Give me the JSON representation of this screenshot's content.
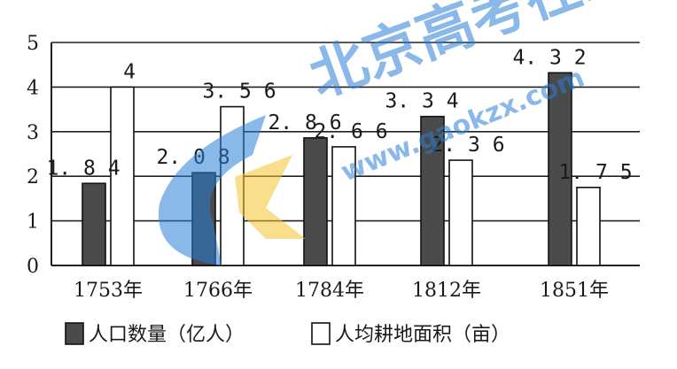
{
  "chart_data": {
    "type": "bar",
    "categories": [
      "1753年",
      "1766年",
      "1784年",
      "1812年",
      "1851年"
    ],
    "series": [
      {
        "name": "人口数量（亿人）",
        "values": [
          1.84,
          2.08,
          2.86,
          3.34,
          4.32
        ],
        "color": "#4a4a4a",
        "labels": [
          "1.84",
          "2.08",
          "2.86",
          "3.34",
          "4.32"
        ]
      },
      {
        "name": "人均耕地面积（亩）",
        "values": [
          4,
          3.56,
          2.66,
          2.36,
          1.75
        ],
        "color": "#ffffff",
        "labels": [
          "4",
          "3.56",
          "2.66",
          "2.36",
          "1.75"
        ]
      }
    ],
    "yticks": [
      "0",
      "1",
      "2",
      "3",
      "4",
      "5"
    ],
    "ylim": [
      0,
      5
    ],
    "grid": true,
    "legend_position": "bottom"
  },
  "watermark": {
    "text": "北京高考在线",
    "url": "www.gaokzx.com",
    "color": "#2a7fd6"
  }
}
